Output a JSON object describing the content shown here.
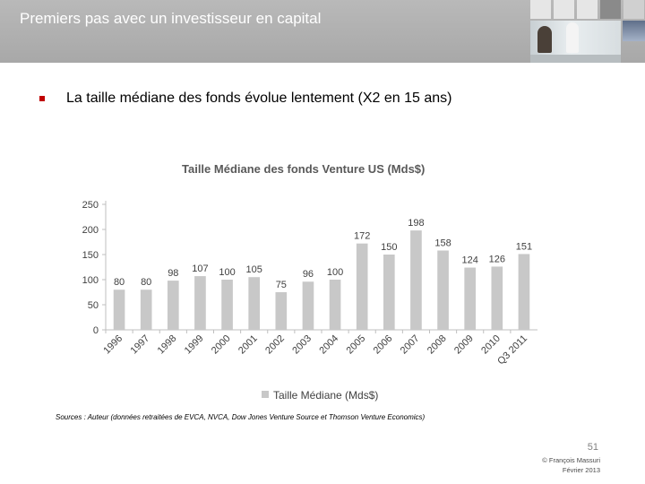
{
  "header": {
    "title": "Premiers pas avec un investisseur en capital"
  },
  "bullet": {
    "text": "La taille médiane des fonds évolue lentement (X2 en 15 ans)"
  },
  "chart_data": {
    "type": "bar",
    "title": "Taille Médiane des fonds Venture US  (Mds$)",
    "categories": [
      "1996",
      "1997",
      "1998",
      "1999",
      "2000",
      "2001",
      "2002",
      "2003",
      "2004",
      "2005",
      "2006",
      "2007",
      "2008",
      "2009",
      "2010",
      "Q3 2011"
    ],
    "values": [
      80,
      80,
      98,
      107,
      100,
      105,
      75,
      96,
      100,
      172,
      150,
      198,
      158,
      124,
      126,
      151
    ],
    "series": [
      {
        "name": "Taille Médiane (Mds$)",
        "values": [
          80,
          80,
          98,
          107,
          100,
          105,
          75,
          96,
          100,
          172,
          150,
          198,
          158,
          124,
          126,
          151
        ]
      }
    ],
    "yticks": [
      0,
      50,
      100,
      150,
      200,
      250
    ],
    "ylim": [
      0,
      250
    ],
    "xlabel": "",
    "ylabel": "",
    "grid": false,
    "legend": "bottom",
    "bar_color": "#c8c8c8"
  },
  "footer": {
    "sources": "Sources : Auteur (données retraitées de EVCA, NVCA, Dow Jones Venture Source et Thomson Venture Economics)",
    "page": "51",
    "copyright": "© François Massuri",
    "date": "Février 2013"
  },
  "colors": {
    "header_bg": "#aaaaaa",
    "bullet": "#c00000",
    "bars": "#c8c8c8"
  }
}
